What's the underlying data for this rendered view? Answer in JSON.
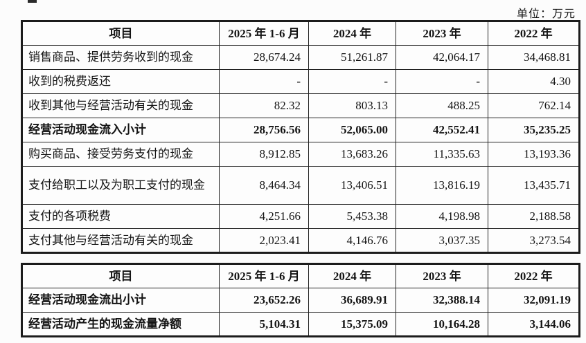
{
  "unit_label": "单位：万元",
  "table1": {
    "headers": [
      "项目",
      "2025 年 1-6 月",
      "2024 年",
      "2023 年",
      "2022 年"
    ],
    "rows": [
      {
        "label": "销售商品、提供劳务收到的现金",
        "values": [
          "28,674.24",
          "51,261.87",
          "42,064.17",
          "34,468.81"
        ],
        "bold": false
      },
      {
        "label": "收到的税费返还",
        "values": [
          "-",
          "-",
          "-",
          "4.30"
        ],
        "bold": false
      },
      {
        "label": "收到其他与经营活动有关的现金",
        "values": [
          "82.32",
          "803.13",
          "488.25",
          "762.14"
        ],
        "bold": false
      },
      {
        "label": "经营活动现金流入小计",
        "values": [
          "28,756.56",
          "52,065.00",
          "42,552.41",
          "35,235.25"
        ],
        "bold": true
      },
      {
        "label": "购买商品、接受劳务支付的现金",
        "values": [
          "8,912.85",
          "13,683.26",
          "11,335.63",
          "13,193.36"
        ],
        "bold": false
      },
      {
        "label": "支付给职工以及为职工支付的现金",
        "values": [
          "8,464.34",
          "13,406.51",
          "13,816.19",
          "13,435.71"
        ],
        "bold": false
      },
      {
        "label": "支付的各项税费",
        "values": [
          "4,251.66",
          "5,453.38",
          "4,198.98",
          "2,188.58"
        ],
        "bold": false
      },
      {
        "label": "支付其他与经营活动有关的现金",
        "values": [
          "2,023.41",
          "4,146.76",
          "3,037.35",
          "3,273.54"
        ],
        "bold": false
      }
    ]
  },
  "table2": {
    "headers": [
      "项目",
      "2025 年 1-6 月",
      "2024 年",
      "2023 年",
      "2022 年"
    ],
    "rows": [
      {
        "label": "经营活动现金流出小计",
        "values": [
          "23,652.26",
          "36,689.91",
          "32,388.14",
          "32,091.19"
        ],
        "bold": true
      },
      {
        "label": "经营活动产生的现金流量净额",
        "values": [
          "5,104.31",
          "15,375.09",
          "10,164.28",
          "3,144.06"
        ],
        "bold": true
      }
    ]
  }
}
